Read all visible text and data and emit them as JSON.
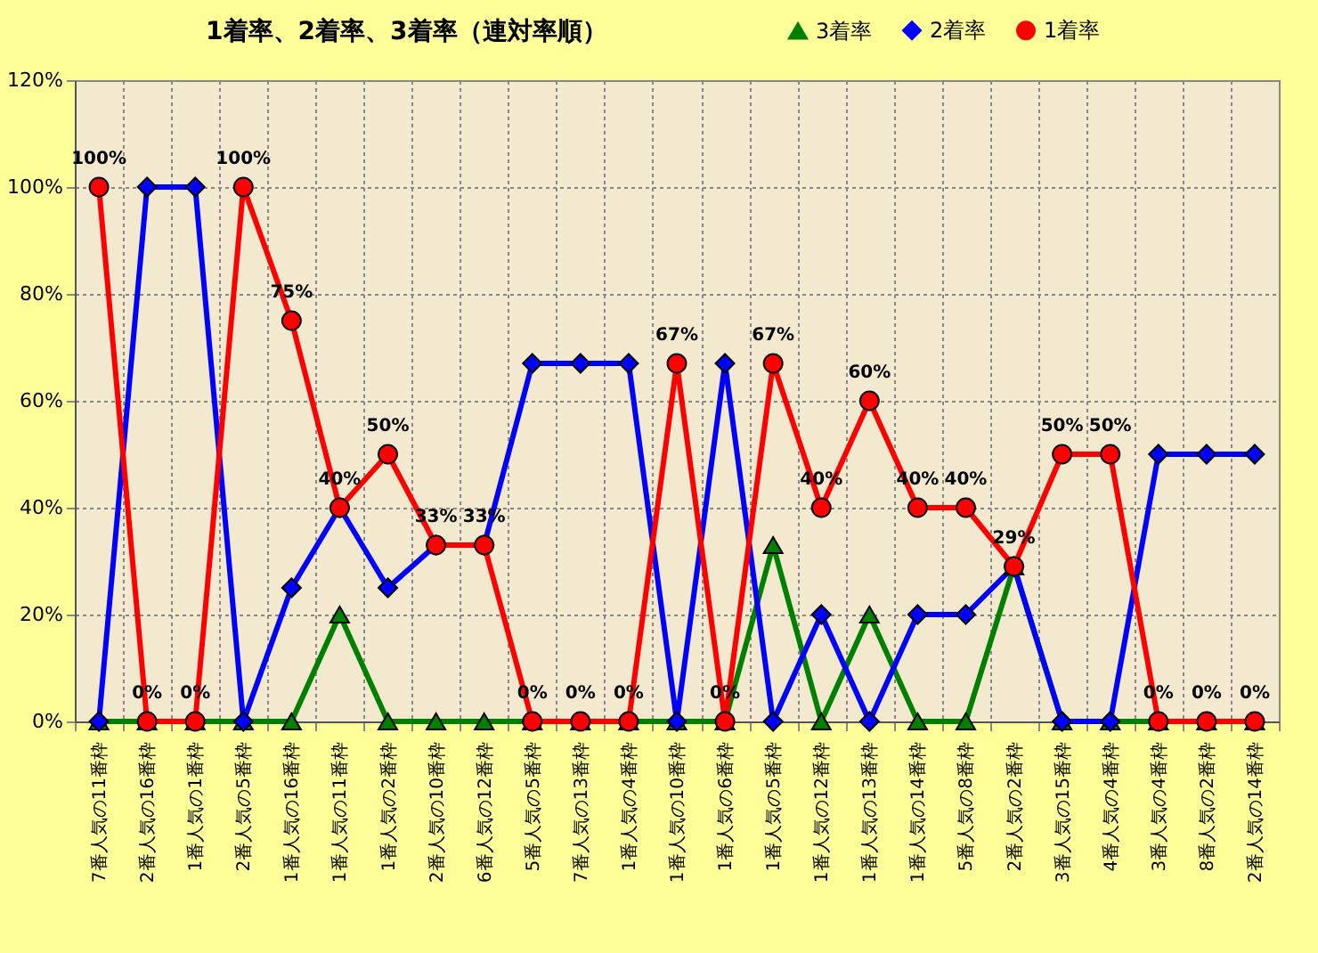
{
  "chart_data": {
    "type": "line",
    "title": "1着率、2着率、3着率（連対率順）",
    "categories": [
      "7番人気の11番枠",
      "2番人気の16番枠",
      "1番人気の1番枠",
      "2番人気の5番枠",
      "1番人気の16番枠",
      "1番人気の11番枠",
      "1番人気の2番枠",
      "2番人気の10番枠",
      "6番人気の12番枠",
      "5番人気の5番枠",
      "7番人気の13番枠",
      "1番人気の4番枠",
      "1番人気の10番枠",
      "1番人気の6番枠",
      "1番人気の5番枠",
      "1番人気の12番枠",
      "1番人気の13番枠",
      "1番人気の14番枠",
      "5番人気の8番枠",
      "2番人気の2番枠",
      "3番人気の15番枠",
      "4番人気の4番枠",
      "3番人気の4番枠",
      "8番人気の2番枠",
      "2番人気の14番枠"
    ],
    "series": [
      {
        "name": "3着率",
        "color": "#008000",
        "marker": "triangle",
        "values": [
          0,
          0,
          0,
          0,
          0,
          20,
          0,
          0,
          0,
          0,
          0,
          0,
          0,
          0,
          33,
          0,
          20,
          0,
          0,
          29,
          0,
          0,
          0,
          0,
          0
        ]
      },
      {
        "name": "2着率",
        "color": "#0000ff",
        "marker": "diamond",
        "values": [
          0,
          100,
          100,
          0,
          25,
          40,
          25,
          33,
          33,
          67,
          67,
          67,
          0,
          67,
          0,
          20,
          0,
          20,
          20,
          29,
          0,
          0,
          50,
          50,
          50
        ]
      },
      {
        "name": "1着率",
        "color": "#ff0000",
        "marker": "circle",
        "values": [
          100,
          0,
          0,
          100,
          75,
          40,
          50,
          33,
          33,
          0,
          0,
          0,
          67,
          0,
          67,
          40,
          60,
          40,
          40,
          29,
          50,
          50,
          0,
          0,
          0
        ],
        "value_labels": [
          "100%",
          "0%",
          "0%",
          "100%",
          "75%",
          "40%",
          "50%",
          "33%",
          "33%",
          "0%",
          "0%",
          "0%",
          "67%",
          "0%",
          "67%",
          "40%",
          "60%",
          "40%",
          "40%",
          "29%",
          "50%",
          "50%",
          "0%",
          "0%",
          "0%"
        ]
      }
    ],
    "ylim": [
      0,
      120
    ],
    "yticks": [
      {
        "value": 0,
        "label": "0%"
      },
      {
        "value": 20,
        "label": "20%"
      },
      {
        "value": 40,
        "label": "40%"
      },
      {
        "value": 60,
        "label": "60%"
      },
      {
        "value": 80,
        "label": "80%"
      },
      {
        "value": 100,
        "label": "100%"
      },
      {
        "value": 120,
        "label": "120%"
      }
    ],
    "grid": true,
    "legend": "top right"
  }
}
